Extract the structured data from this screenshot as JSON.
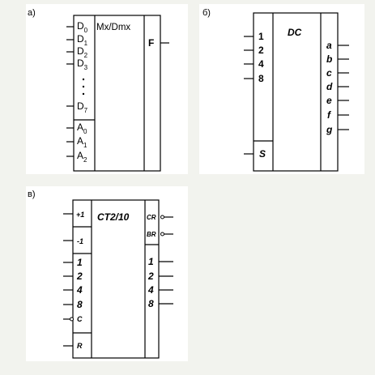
{
  "panels": {
    "a": {
      "label": "а)",
      "title": "Mx/Dmx",
      "data_inputs": [
        "D",
        "D",
        "D",
        "D",
        "D"
      ],
      "data_subscripts": [
        "0",
        "1",
        "2",
        "3",
        "7"
      ],
      "address_inputs": [
        "A",
        "A",
        "A"
      ],
      "address_subscripts": [
        "0",
        "1",
        "2"
      ],
      "output": "F"
    },
    "b": {
      "label": "б)",
      "title": "DC",
      "inputs": [
        "1",
        "2",
        "4",
        "8"
      ],
      "strobe": "S",
      "outputs": [
        "a",
        "b",
        "c",
        "d",
        "e",
        "f",
        "g"
      ]
    },
    "c": {
      "label": "в)",
      "title": "CT2/10",
      "count_up": "+1",
      "count_down": "-1",
      "inputs": [
        "1",
        "2",
        "4",
        "8"
      ],
      "clock": "C",
      "reset": "R",
      "carry": "CR",
      "borrow": "BR",
      "outputs": [
        "1",
        "2",
        "4",
        "8"
      ]
    }
  },
  "colors": {
    "background": "#f2f3ee",
    "panel": "#ffffff",
    "ink": "#000000"
  }
}
